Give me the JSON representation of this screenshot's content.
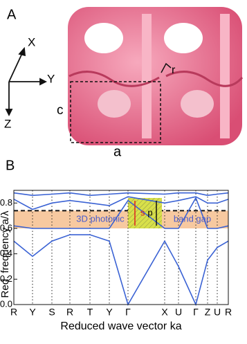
{
  "panel_a": {
    "label": "A",
    "axes": [
      "X",
      "Y",
      "Z"
    ],
    "lattice_labels": [
      "c",
      "a",
      "r"
    ]
  },
  "chart_data": {
    "type": "line",
    "panel_label": "B",
    "y_label": "Red. frequency a/λ",
    "x_label": "Reduced wave vector ka",
    "categories": [
      "R",
      "Y",
      "S",
      "R",
      "T",
      "Y",
      "Γ",
      "X",
      "U",
      "Γ",
      "Z",
      "U",
      "R"
    ],
    "series": [
      {
        "color": "#3a62d4",
        "values": [
          0.5,
          0.38,
          0.5,
          0.55,
          0.55,
          0.5,
          0,
          0.5,
          0.3,
          0,
          0.35,
          0.45,
          0.5
        ]
      },
      {
        "color": "#3a62d4",
        "values": [
          0.62,
          0.6,
          0.6,
          0.6,
          0.6,
          0.6,
          0.82,
          0.6,
          0.6,
          0.84,
          0.6,
          0.6,
          0.62
        ]
      },
      {
        "color": "#3a62d4",
        "values": [
          0.83,
          0.75,
          0.8,
          0.82,
          0.8,
          0.78,
          0.85,
          0.8,
          0.82,
          0.85,
          0.8,
          0.8,
          0.83
        ]
      },
      {
        "color": "#3a62d4",
        "values": [
          0.88,
          0.86,
          0.87,
          0.88,
          0.86,
          0.87,
          0.88,
          0.87,
          0.88,
          0.88,
          0.86,
          0.87,
          0.88
        ]
      }
    ],
    "ylim": [
      0,
      0.9
    ],
    "yticks": [
      {
        "value": 0,
        "label": "0.0"
      },
      0.2,
      0.4,
      0.6,
      0.8
    ],
    "band_gap": {
      "range": [
        0.6,
        0.74
      ],
      "color": "#f7c9a0",
      "labels": [
        "3D photonic",
        "band gap"
      ]
    },
    "highlight": {
      "range": [
        0.6,
        0.84
      ],
      "color": "#d8e04a",
      "labels": [
        "s",
        "p"
      ]
    }
  }
}
